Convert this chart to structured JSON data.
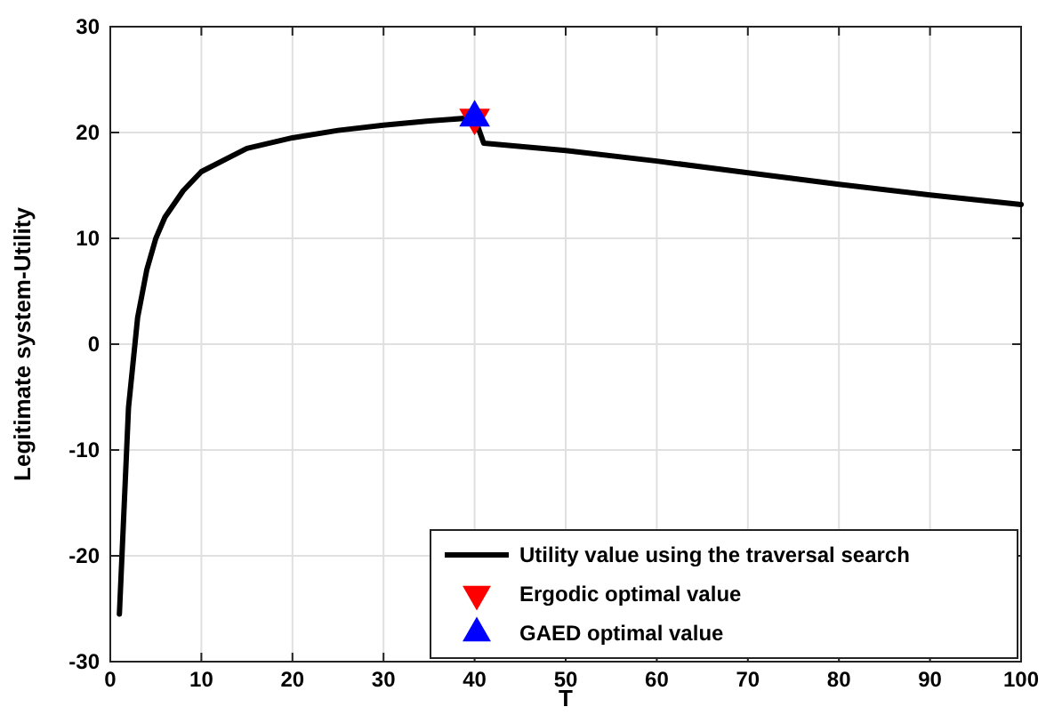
{
  "chart_data": {
    "type": "line",
    "xlabel": "T",
    "ylabel": "Legitimate system-Utility",
    "xlim": [
      0,
      100
    ],
    "ylim": [
      -30,
      30
    ],
    "xticks": [
      0,
      10,
      20,
      30,
      40,
      50,
      60,
      70,
      80,
      90,
      100
    ],
    "yticks": [
      -30,
      -20,
      -10,
      0,
      10,
      20,
      30
    ],
    "grid": true,
    "legend": "bottom right",
    "series": [
      {
        "name": "Utility value using the traversal search",
        "color": "#000000",
        "marker": "none",
        "line_style": "solid",
        "x": [
          1,
          2,
          3,
          4,
          5,
          6,
          8,
          10,
          15,
          20,
          25,
          30,
          35,
          40,
          41,
          50,
          60,
          70,
          80,
          90,
          100
        ],
        "values": [
          -25.5,
          -6,
          2.5,
          7,
          10,
          12,
          14.5,
          16.3,
          18.5,
          19.5,
          20.2,
          20.7,
          21.1,
          21.4,
          19,
          18.3,
          17.3,
          16.2,
          15.1,
          14.1,
          13.2
        ]
      },
      {
        "name": "Ergodic optimal value",
        "type": "scatter",
        "color": "#ff0000",
        "marker": "triangle-down",
        "x": [
          40
        ],
        "values": [
          21.4
        ]
      },
      {
        "name": "GAED optimal value",
        "type": "scatter",
        "color": "#0000ff",
        "marker": "triangle",
        "x": [
          40
        ],
        "values": [
          21.4
        ]
      }
    ]
  }
}
